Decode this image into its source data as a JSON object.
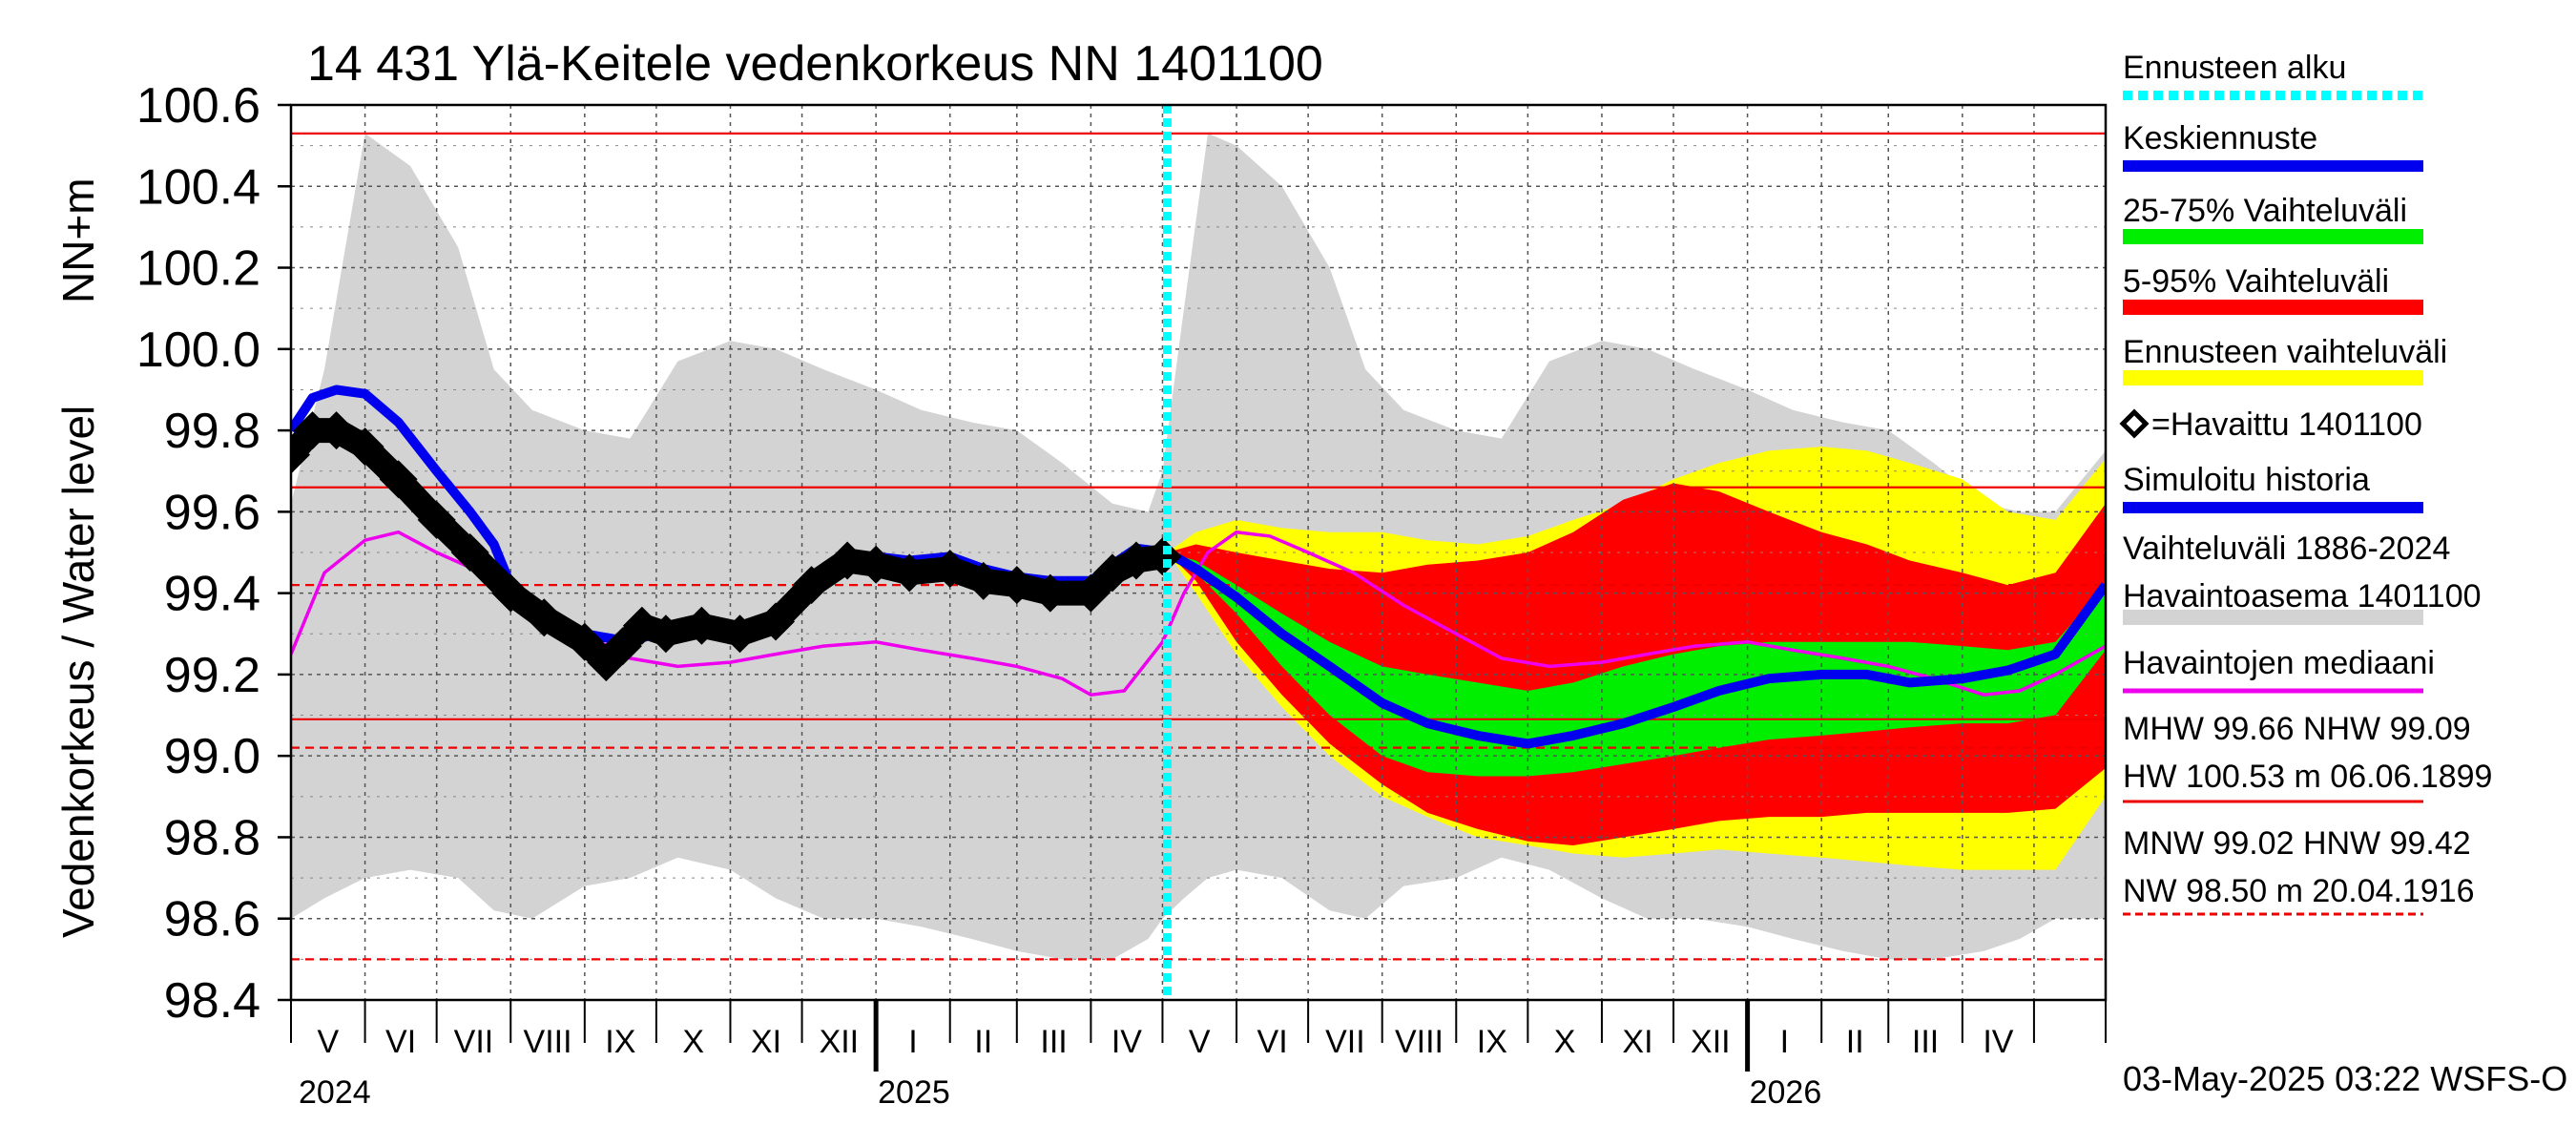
{
  "chart_data": {
    "type": "line",
    "title": "14 431 Ylä-Keitele vedenkorkeus NN 1401100",
    "ylabel_left": "Vedenkorkeus / Water level",
    "ylabel_unit": "NN+m",
    "ylim": [
      98.4,
      100.6
    ],
    "yticks": [
      "100.6",
      "100.4",
      "100.2",
      "100.0",
      "99.8",
      "99.6",
      "99.4",
      "99.2",
      "99.0",
      "98.8",
      "98.6",
      "98.4"
    ],
    "xlim": [
      "2024-05-01",
      "2026-05-31"
    ],
    "month_labels": [
      "V",
      "VI",
      "VII",
      "VIII",
      "IX",
      "X",
      "XI",
      "XII",
      "I",
      "II",
      "III",
      "IV",
      "V",
      "VI",
      "VII",
      "VIII",
      "IX",
      "X",
      "XI",
      "XII",
      "I",
      "II",
      "III",
      "IV"
    ],
    "year_labels": [
      "2024",
      "2025",
      "2026"
    ],
    "forecast_start": "2025-05-03",
    "reference_lines": [
      {
        "name": "MHW",
        "value": 99.66,
        "style": "solid"
      },
      {
        "name": "NHW",
        "value": 99.09,
        "style": "solid"
      },
      {
        "name": "HW",
        "value": 100.53,
        "style": "solid"
      },
      {
        "name": "MNW",
        "value": 99.02,
        "style": "dashed"
      },
      {
        "name": "HNW",
        "value": 99.42,
        "style": "dashed"
      },
      {
        "name": "NW",
        "value": 98.5,
        "style": "dashed"
      }
    ],
    "history_band": {
      "name": "Vaihteluväli 1886-2024 Havaintoasema 1401100",
      "color": "#d3d3d3",
      "x": [
        "2024-05-01",
        "2024-05-15",
        "2024-06-01",
        "2024-06-20",
        "2024-07-10",
        "2024-07-25",
        "2024-08-10",
        "2024-09-01",
        "2024-09-20",
        "2024-10-10",
        "2024-11-01",
        "2024-11-20",
        "2024-12-10",
        "2025-01-01",
        "2025-01-20",
        "2025-02-10",
        "2025-03-01",
        "2025-03-20",
        "2025-04-10",
        "2025-04-25",
        "2025-05-01",
        "2025-05-10",
        "2025-05-20",
        "2025-06-01",
        "2025-06-20",
        "2025-07-10",
        "2025-07-25",
        "2025-08-10",
        "2025-09-01",
        "2025-09-20",
        "2025-10-10",
        "2025-11-01",
        "2025-11-20",
        "2025-12-10",
        "2026-01-01",
        "2026-01-20",
        "2026-02-10",
        "2026-03-01",
        "2026-03-20",
        "2026-04-10",
        "2026-04-25",
        "2026-05-10",
        "2026-05-31"
      ],
      "upper": [
        99.62,
        99.95,
        100.53,
        100.45,
        100.25,
        99.95,
        99.85,
        99.8,
        99.78,
        99.97,
        100.02,
        100.0,
        99.95,
        99.9,
        99.85,
        99.82,
        99.8,
        99.72,
        99.62,
        99.6,
        99.7,
        100.1,
        100.53,
        100.5,
        100.4,
        100.2,
        99.95,
        99.85,
        99.8,
        99.78,
        99.97,
        100.02,
        100.0,
        99.95,
        99.9,
        99.85,
        99.82,
        99.8,
        99.72,
        99.62,
        99.6,
        99.6,
        99.75
      ],
      "lower": [
        98.6,
        98.65,
        98.7,
        98.72,
        98.7,
        98.62,
        98.6,
        98.68,
        98.7,
        98.75,
        98.72,
        98.65,
        98.6,
        98.6,
        98.58,
        98.55,
        98.52,
        98.5,
        98.5,
        98.55,
        98.6,
        98.65,
        98.7,
        98.72,
        98.7,
        98.62,
        98.6,
        98.68,
        98.7,
        98.75,
        98.72,
        98.65,
        98.6,
        98.6,
        98.58,
        98.55,
        98.52,
        98.5,
        98.5,
        98.52,
        98.55,
        98.6,
        98.6
      ]
    },
    "forecast_bands": [
      {
        "name": "Ennusteen vaihteluväli",
        "color": "#ffff00",
        "x": [
          "2025-05-03",
          "2025-05-15",
          "2025-06-01",
          "2025-06-20",
          "2025-07-10",
          "2025-08-01",
          "2025-08-20",
          "2025-09-10",
          "2025-10-01",
          "2025-10-20",
          "2025-11-10",
          "2025-12-01",
          "2025-12-20",
          "2026-01-10",
          "2026-02-01",
          "2026-02-20",
          "2026-03-10",
          "2026-04-01",
          "2026-04-20",
          "2026-05-10",
          "2026-05-31"
        ],
        "upper": [
          99.5,
          99.55,
          99.58,
          99.56,
          99.55,
          99.55,
          99.53,
          99.52,
          99.54,
          99.58,
          99.62,
          99.68,
          99.72,
          99.75,
          99.76,
          99.75,
          99.72,
          99.68,
          99.6,
          99.58,
          99.73
        ],
        "lower": [
          99.5,
          99.4,
          99.25,
          99.12,
          99.0,
          98.9,
          98.85,
          98.8,
          98.78,
          98.76,
          98.75,
          98.76,
          98.77,
          98.76,
          98.75,
          98.74,
          98.73,
          98.72,
          98.72,
          98.72,
          98.9
        ]
      },
      {
        "name": "5-95% Vaihteluväli",
        "color": "#ff0000",
        "x": [
          "2025-05-03",
          "2025-05-15",
          "2025-06-01",
          "2025-06-20",
          "2025-07-10",
          "2025-08-01",
          "2025-08-20",
          "2025-09-10",
          "2025-10-01",
          "2025-10-20",
          "2025-11-10",
          "2025-12-01",
          "2025-12-20",
          "2026-01-10",
          "2026-02-01",
          "2026-02-20",
          "2026-03-10",
          "2026-04-01",
          "2026-04-20",
          "2026-05-10",
          "2026-05-31"
        ],
        "upper": [
          99.5,
          99.52,
          99.5,
          99.48,
          99.46,
          99.45,
          99.47,
          99.48,
          99.5,
          99.55,
          99.63,
          99.67,
          99.65,
          99.6,
          99.55,
          99.52,
          99.48,
          99.45,
          99.42,
          99.45,
          99.62
        ],
        "lower": [
          99.5,
          99.43,
          99.28,
          99.15,
          99.03,
          98.93,
          98.86,
          98.82,
          98.79,
          98.78,
          98.8,
          98.82,
          98.84,
          98.85,
          98.85,
          98.86,
          98.86,
          98.86,
          98.86,
          98.87,
          98.97
        ]
      },
      {
        "name": "25-75% Vaihteluväli",
        "color": "#00ee00",
        "x": [
          "2025-05-03",
          "2025-05-15",
          "2025-06-01",
          "2025-06-20",
          "2025-07-10",
          "2025-08-01",
          "2025-08-20",
          "2025-09-10",
          "2025-10-01",
          "2025-10-20",
          "2025-11-10",
          "2025-12-01",
          "2025-12-20",
          "2026-01-10",
          "2026-02-01",
          "2026-02-20",
          "2026-03-10",
          "2026-04-01",
          "2026-04-20",
          "2026-05-10",
          "2026-05-31"
        ],
        "upper": [
          99.5,
          99.48,
          99.42,
          99.35,
          99.28,
          99.22,
          99.2,
          99.18,
          99.16,
          99.18,
          99.22,
          99.25,
          99.27,
          99.28,
          99.28,
          99.28,
          99.28,
          99.27,
          99.26,
          99.28,
          99.42
        ],
        "lower": [
          99.5,
          99.45,
          99.35,
          99.22,
          99.1,
          99.0,
          98.96,
          98.95,
          98.95,
          98.96,
          98.98,
          99.0,
          99.02,
          99.04,
          99.05,
          99.06,
          99.07,
          99.08,
          99.08,
          99.1,
          99.26
        ]
      }
    ],
    "series": [
      {
        "name": "Havaittu 1401100",
        "color": "#000000",
        "marker": "diamond",
        "x": [
          "2024-05-01",
          "2024-05-10",
          "2024-05-20",
          "2024-06-01",
          "2024-06-15",
          "2024-07-01",
          "2024-07-15",
          "2024-08-01",
          "2024-08-15",
          "2024-09-01",
          "2024-09-10",
          "2024-09-17",
          "2024-09-25",
          "2024-10-05",
          "2024-10-20",
          "2024-11-05",
          "2024-11-20",
          "2024-12-05",
          "2024-12-20",
          "2025-01-01",
          "2025-01-15",
          "2025-02-01",
          "2025-02-15",
          "2025-03-01",
          "2025-03-15",
          "2025-04-01",
          "2025-04-10",
          "2025-04-20",
          "2025-05-01"
        ],
        "values": [
          99.74,
          99.8,
          99.8,
          99.76,
          99.68,
          99.58,
          99.5,
          99.4,
          99.34,
          99.28,
          99.23,
          99.27,
          99.32,
          99.3,
          99.32,
          99.3,
          99.33,
          99.42,
          99.48,
          99.47,
          99.45,
          99.46,
          99.43,
          99.42,
          99.4,
          99.4,
          99.45,
          99.48,
          99.49
        ]
      },
      {
        "name": "Simuloitu historia",
        "color": "#0000ee",
        "x": [
          "2024-05-01",
          "2024-05-10",
          "2024-05-20",
          "2024-06-01",
          "2024-06-15",
          "2024-07-01",
          "2024-07-15",
          "2024-07-25",
          "2024-08-01",
          "2024-08-15",
          "2024-09-01",
          "2024-09-20",
          "2024-10-05",
          "2024-10-20",
          "2024-11-05",
          "2024-11-20",
          "2024-12-05",
          "2024-12-20",
          "2025-01-01",
          "2025-01-15",
          "2025-02-01",
          "2025-02-15",
          "2025-03-01",
          "2025-03-15",
          "2025-04-01",
          "2025-04-10",
          "2025-04-20",
          "2025-05-03"
        ],
        "values": [
          99.8,
          99.88,
          99.9,
          99.89,
          99.82,
          99.7,
          99.6,
          99.52,
          99.42,
          99.36,
          99.3,
          99.28,
          99.31,
          99.31,
          99.31,
          99.34,
          99.43,
          99.49,
          99.49,
          99.48,
          99.49,
          99.46,
          99.44,
          99.43,
          99.43,
          99.47,
          99.51,
          99.5
        ]
      },
      {
        "name": "Keskiennuste",
        "color": "#0000ee",
        "x": [
          "2025-05-03",
          "2025-05-15",
          "2025-06-01",
          "2025-06-20",
          "2025-07-10",
          "2025-08-01",
          "2025-08-20",
          "2025-09-10",
          "2025-10-01",
          "2025-10-20",
          "2025-11-10",
          "2025-12-01",
          "2025-12-20",
          "2026-01-10",
          "2026-02-01",
          "2026-02-20",
          "2026-03-10",
          "2026-04-01",
          "2026-04-20",
          "2026-05-10",
          "2026-05-31"
        ],
        "values": [
          99.5,
          99.46,
          99.39,
          99.3,
          99.22,
          99.13,
          99.08,
          99.05,
          99.03,
          99.05,
          99.08,
          99.12,
          99.16,
          99.19,
          99.2,
          99.2,
          99.18,
          99.19,
          99.21,
          99.25,
          99.42
        ]
      },
      {
        "name": "Havaintojen mediaani",
        "color": "#ee00ee",
        "x": [
          "2024-05-01",
          "2024-05-15",
          "2024-06-01",
          "2024-06-15",
          "2024-07-01",
          "2024-07-20",
          "2024-08-10",
          "2024-09-01",
          "2024-09-20",
          "2024-10-10",
          "2024-11-01",
          "2024-11-20",
          "2024-12-10",
          "2025-01-01",
          "2025-01-20",
          "2025-02-10",
          "2025-03-01",
          "2025-03-20",
          "2025-04-01",
          "2025-04-15",
          "2025-05-01",
          "2025-05-10",
          "2025-05-20",
          "2025-06-01",
          "2025-06-15",
          "2025-07-01",
          "2025-07-20",
          "2025-08-10",
          "2025-09-01",
          "2025-09-20",
          "2025-10-10",
          "2025-11-01",
          "2025-11-20",
          "2025-12-10",
          "2026-01-01",
          "2026-01-20",
          "2026-02-10",
          "2026-03-01",
          "2026-03-20",
          "2026-04-10",
          "2026-04-25",
          "2026-05-10",
          "2026-05-31"
        ],
        "values": [
          99.25,
          99.45,
          99.53,
          99.55,
          99.5,
          99.45,
          99.37,
          99.3,
          99.24,
          99.22,
          99.23,
          99.25,
          99.27,
          99.28,
          99.26,
          99.24,
          99.22,
          99.19,
          99.15,
          99.16,
          99.28,
          99.4,
          99.5,
          99.55,
          99.54,
          99.5,
          99.45,
          99.37,
          99.3,
          99.24,
          99.22,
          99.23,
          99.25,
          99.27,
          99.28,
          99.26,
          99.24,
          99.22,
          99.19,
          99.15,
          99.16,
          99.2,
          99.27
        ]
      }
    ],
    "legend": {
      "placement": "right",
      "items": [
        {
          "label": "Ennusteen alku",
          "color": "#00ffff",
          "style": "dotted"
        },
        {
          "label": "Keskiennuste",
          "color": "#0000ee",
          "style": "line"
        },
        {
          "label": "25-75% Vaihteluväli",
          "color": "#00ee00",
          "style": "band"
        },
        {
          "label": "5-95% Vaihteluväli",
          "color": "#ff0000",
          "style": "band"
        },
        {
          "label": "Ennusteen vaihteluväli",
          "color": "#ffff00",
          "style": "band"
        },
        {
          "label": "=Havaittu 1401100",
          "color": "#000000",
          "style": "marker"
        },
        {
          "label": "Simuloitu historia",
          "color": "#0000ee",
          "style": "line"
        },
        {
          "label": "Vaihteluväli 1886-2024",
          "label2": " Havaintoasema 1401100",
          "color": "#d3d3d3",
          "style": "band"
        },
        {
          "label": "Havaintojen mediaani",
          "color": "#ee00ee",
          "style": "thinline"
        }
      ],
      "stats_1": [
        "MHW  99.66 NHW  99.09",
        "HW 100.53 m 06.06.1899"
      ],
      "stats_2": [
        "MNW  99.02 HNW  99.42",
        "NW  98.50 m 20.04.1916"
      ]
    },
    "timestamp": "03-May-2025 03:22 WSFS-O"
  }
}
